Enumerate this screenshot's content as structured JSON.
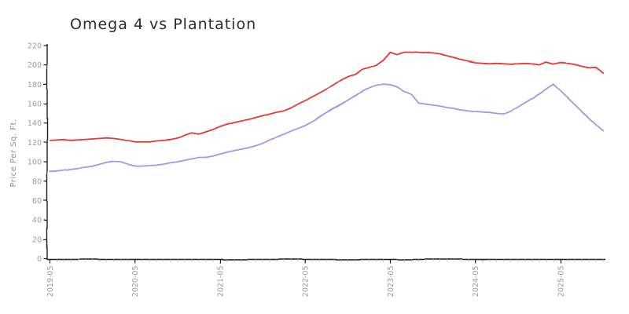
{
  "chart_data": {
    "type": "line",
    "title": "Omega 4 vs Plantation",
    "xlabel": "",
    "ylabel": "Price Per Sq. Ft.",
    "ylim": [
      0,
      220
    ],
    "yticks": [
      0,
      20,
      40,
      60,
      80,
      100,
      120,
      140,
      160,
      180,
      200,
      220
    ],
    "xticks_major": [
      "2019-05",
      "2020-05",
      "2021-05",
      "2022-05",
      "2023-05",
      "2024-05",
      "2025-05"
    ],
    "grid": false,
    "legend": "none",
    "style": "xkcd-handdrawn",
    "x": [
      "2019-05",
      "2019-06",
      "2019-07",
      "2019-08",
      "2019-09",
      "2019-10",
      "2019-11",
      "2019-12",
      "2020-01",
      "2020-02",
      "2020-03",
      "2020-04",
      "2020-05",
      "2020-06",
      "2020-07",
      "2020-08",
      "2020-09",
      "2020-10",
      "2020-11",
      "2020-12",
      "2021-01",
      "2021-02",
      "2021-03",
      "2021-04",
      "2021-05",
      "2021-06",
      "2021-07",
      "2021-08",
      "2021-09",
      "2021-10",
      "2021-11",
      "2021-12",
      "2022-01",
      "2022-02",
      "2022-03",
      "2022-04",
      "2022-05",
      "2022-06",
      "2022-07",
      "2022-08",
      "2022-09",
      "2022-10",
      "2022-11",
      "2022-12",
      "2023-01",
      "2023-02",
      "2023-03",
      "2023-04",
      "2023-05",
      "2023-06",
      "2023-07",
      "2023-08",
      "2023-09",
      "2023-10",
      "2023-11",
      "2023-12",
      "2024-01",
      "2024-02",
      "2024-03",
      "2024-04",
      "2024-05",
      "2024-06",
      "2024-07",
      "2024-08",
      "2024-09",
      "2024-10",
      "2024-11",
      "2024-12",
      "2025-01",
      "2025-02",
      "2025-03",
      "2025-04",
      "2025-05",
      "2025-06",
      "2025-07",
      "2025-08",
      "2025-09",
      "2025-10",
      "2025-11"
    ],
    "series": [
      {
        "name": "Plantation",
        "color": "#e53935",
        "values": [
          122,
          122.5,
          123,
          122.5,
          123,
          123.5,
          124,
          124.5,
          125,
          124.5,
          123.5,
          122,
          120.5,
          120.5,
          120.5,
          121.5,
          122,
          123,
          124.5,
          127,
          129.5,
          128,
          130.5,
          133,
          136,
          138.5,
          140.5,
          142,
          143.5,
          145.5,
          147.5,
          149.5,
          151.5,
          153,
          156,
          160,
          163.5,
          167,
          171,
          175,
          179,
          184,
          188,
          190,
          195.5,
          197.5,
          200,
          205,
          213.5,
          211,
          213.5,
          213.5,
          213,
          212.5,
          212,
          211,
          209.5,
          207.5,
          205.5,
          204,
          202.5,
          202,
          201.5,
          202,
          201.5,
          201,
          201,
          201.5,
          201,
          199.5,
          202.5,
          200.5,
          202,
          201.5,
          200.5,
          198.5,
          197,
          197.5,
          191.5
        ]
      },
      {
        "name": "Omega 4",
        "color": "#9a9aec",
        "values": [
          90,
          90.5,
          91.5,
          92.5,
          93.5,
          94.5,
          95.5,
          97.5,
          99.5,
          100.5,
          100,
          97.5,
          95.5,
          95.5,
          96,
          96.5,
          97.5,
          99,
          100,
          101.5,
          103,
          104.5,
          104.5,
          106,
          108,
          110,
          111.5,
          113,
          114.5,
          116.5,
          119,
          122.5,
          126,
          129,
          132,
          135,
          138,
          142,
          146.5,
          151,
          155,
          159,
          163.5,
          168,
          172.5,
          176.5,
          179,
          180.5,
          180,
          177.5,
          172.5,
          169.5,
          160.5,
          159.5,
          158.5,
          157.5,
          156,
          155,
          153.5,
          152.5,
          151.5,
          151,
          150.5,
          149.5,
          149,
          152,
          156.5,
          161,
          165.5,
          170,
          175,
          180,
          173,
          166,
          159,
          152,
          145.5,
          138.5,
          132
        ]
      }
    ]
  }
}
